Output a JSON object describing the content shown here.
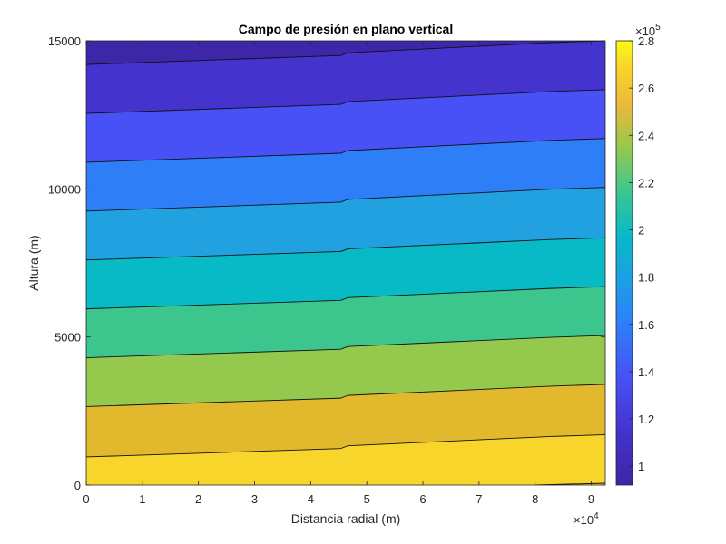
{
  "chart_data": {
    "type": "contourf",
    "title": "Campo de presión en plano vertical",
    "xlabel": "Distancia radial (m)",
    "ylabel": "Altura (m)",
    "x_exponent_label": "×10^4",
    "x_ticks": [
      0,
      1,
      2,
      3,
      4,
      5,
      6,
      7,
      8,
      9
    ],
    "x_tick_scale": 10000,
    "xlim": [
      0,
      92500
    ],
    "y_ticks": [
      0,
      5000,
      10000,
      15000
    ],
    "ylim": [
      0,
      15000
    ],
    "colorbar": {
      "exponent_label": "×10^5",
      "ticks": [
        1,
        1.2,
        1.4,
        1.6,
        1.8,
        2,
        2.2,
        2.4,
        2.6,
        2.8
      ],
      "tick_scale": 100000,
      "clim": [
        92000,
        280000
      ],
      "colormap": "parula"
    },
    "contour_levels": [
      100000,
      120000,
      140000,
      160000,
      180000,
      200000,
      220000,
      240000,
      260000
    ],
    "contour_heights_at_x0": [
      14200,
      12550,
      10900,
      9250,
      7600,
      5950,
      4300,
      2650,
      950
    ],
    "contour_heights_at_xmax": [
      15000,
      13350,
      11700,
      10050,
      8350,
      6700,
      5050,
      3400,
      1700
    ],
    "discontinuity_x": 46000,
    "band_colors": [
      "#3e26a8",
      "#4433cc",
      "#4751f5",
      "#2e7ef8",
      "#21a1e0",
      "#08b9c6",
      "#3cc68e",
      "#94c94d",
      "#e2b82c",
      "#f8d52b"
    ],
    "grid": false,
    "legend": "colorbar right"
  },
  "labels": {
    "title": "Campo de presión en plano vertical",
    "xlabel": "Distancia radial (m)",
    "ylabel": "Altura (m)",
    "x_exp_base": "×10",
    "x_exp_pow": "4",
    "cb_exp_base": "×10",
    "cb_exp_pow": "5",
    "xticks": [
      "0",
      "1",
      "2",
      "3",
      "4",
      "5",
      "6",
      "7",
      "8",
      "9"
    ],
    "yticks": [
      "0",
      "5000",
      "10000",
      "15000"
    ],
    "cbticks": [
      "1",
      "1.2",
      "1.4",
      "1.6",
      "1.8",
      "2",
      "2.2",
      "2.4",
      "2.6",
      "2.8"
    ]
  }
}
